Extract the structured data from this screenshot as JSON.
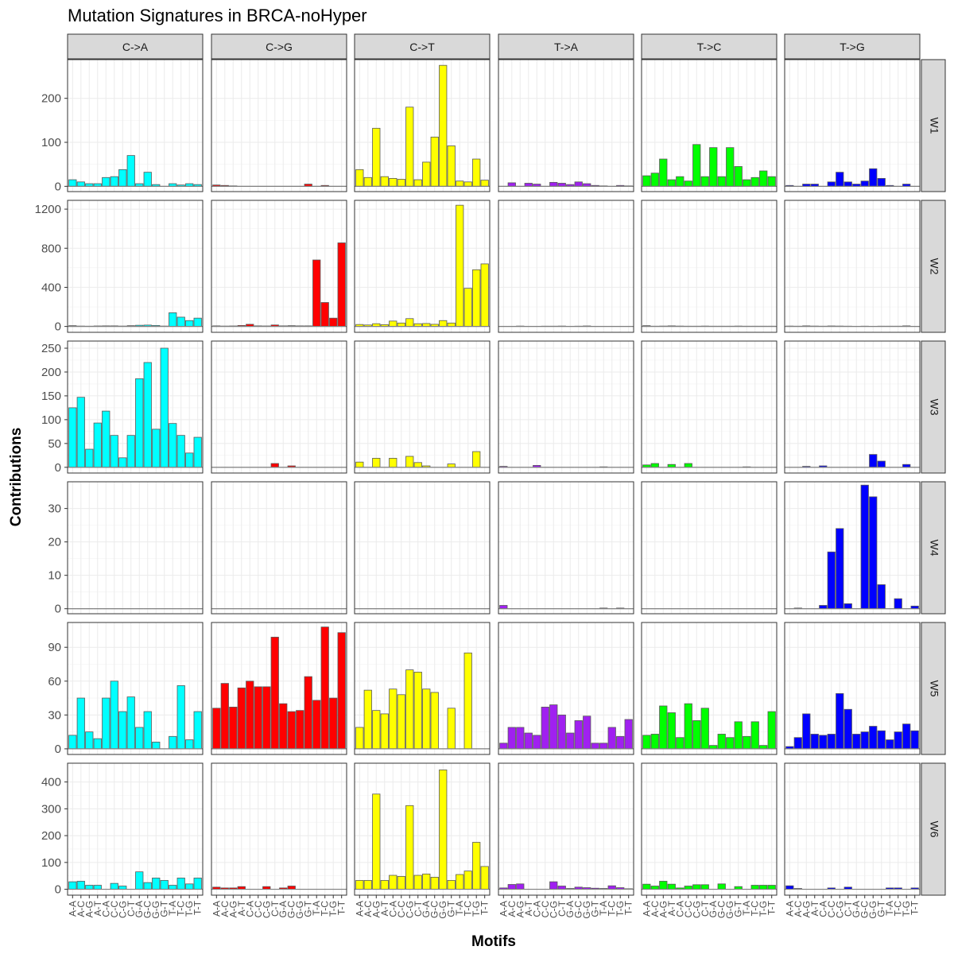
{
  "chart_data": {
    "type": "bar",
    "title": "Mutation Signatures in BRCA-noHyper",
    "xlabel": "Motifs",
    "ylabel": "Contributions",
    "columns": [
      "C->A",
      "C->G",
      "C->T",
      "T->A",
      "T->C",
      "T->G"
    ],
    "rows": [
      "W1",
      "W2",
      "W3",
      "W4",
      "W5",
      "W6"
    ],
    "motifs": [
      "A-A",
      "A-C",
      "A-G",
      "A-T",
      "C-A",
      "C-C",
      "C-G",
      "C-T",
      "G-A",
      "G-C",
      "G-G",
      "G-T",
      "T-A",
      "T-C",
      "T-G",
      "T-T"
    ],
    "colors": {
      "C->A": "#00FFFF",
      "C->G": "#FF0000",
      "C->T": "#FFFF00",
      "T->A": "#A020F0",
      "T->C": "#00FF00",
      "T->G": "#0000FF"
    },
    "facets": {
      "W1": {
        "ylim": [
          -12,
          288
        ],
        "yticks": [
          0,
          100,
          200
        ],
        "values": {
          "C->A": [
            15,
            10,
            6,
            6,
            20,
            22,
            38,
            70,
            6,
            32,
            4,
            0,
            6,
            3,
            6,
            4
          ],
          "C->G": [
            3,
            2,
            1,
            0,
            0,
            0,
            0,
            0,
            0,
            0,
            0,
            5,
            0,
            2,
            0,
            0
          ],
          "C->T": [
            38,
            20,
            132,
            22,
            18,
            16,
            180,
            15,
            55,
            112,
            275,
            92,
            12,
            10,
            62,
            14
          ],
          "T->A": [
            0,
            8,
            0,
            7,
            5,
            0,
            9,
            7,
            4,
            10,
            6,
            2,
            1,
            0,
            2,
            1
          ],
          "T->C": [
            24,
            30,
            62,
            15,
            22,
            12,
            95,
            22,
            88,
            22,
            88,
            45,
            15,
            20,
            35,
            22
          ],
          "T->G": [
            2,
            0,
            5,
            5,
            0,
            10,
            32,
            10,
            5,
            12,
            40,
            18,
            2,
            0,
            5,
            0
          ]
        }
      },
      "W2": {
        "ylim": [
          -60,
          1290
        ],
        "yticks": [
          0,
          400,
          800,
          1200
        ],
        "values": {
          "C->A": [
            8,
            4,
            3,
            5,
            6,
            6,
            4,
            8,
            12,
            14,
            10,
            4,
            140,
            95,
            60,
            85
          ],
          "C->G": [
            6,
            4,
            5,
            10,
            22,
            6,
            5,
            15,
            6,
            8,
            6,
            6,
            680,
            245,
            85,
            855
          ],
          "C->T": [
            20,
            15,
            28,
            18,
            55,
            35,
            80,
            28,
            30,
            22,
            60,
            35,
            1240,
            390,
            580,
            640
          ],
          "T->A": [
            2,
            2,
            4,
            2,
            2,
            3,
            3,
            4,
            2,
            3,
            5,
            2,
            2,
            2,
            2,
            2
          ],
          "T->C": [
            8,
            3,
            4,
            6,
            4,
            3,
            3,
            4,
            3,
            3,
            3,
            4,
            3,
            3,
            3,
            3
          ],
          "T->G": [
            4,
            3,
            6,
            4,
            3,
            5,
            4,
            3,
            2,
            3,
            2,
            3,
            3,
            3,
            6,
            2
          ]
        }
      },
      "W3": {
        "ylim": [
          -12,
          265
        ],
        "yticks": [
          0,
          50,
          100,
          150,
          200,
          250
        ],
        "values": {
          "C->A": [
            125,
            147,
            38,
            93,
            118,
            67,
            20,
            67,
            186,
            220,
            80,
            250,
            92,
            67,
            30,
            63
          ],
          "C->G": [
            0,
            0,
            0,
            0,
            0,
            0,
            0,
            8,
            0,
            3,
            0,
            0,
            0,
            0,
            0,
            0
          ],
          "C->T": [
            11,
            0,
            19,
            0,
            19,
            0,
            23,
            10,
            3,
            0,
            0,
            7,
            0,
            0,
            33,
            0
          ],
          "T->A": [
            2,
            0,
            0,
            0,
            4,
            0,
            0,
            0,
            0,
            0,
            0,
            0,
            1,
            0,
            0,
            0
          ],
          "T->C": [
            5,
            8,
            0,
            6,
            0,
            8,
            0,
            0,
            0,
            0,
            0,
            0,
            1,
            0,
            0,
            0
          ],
          "T->G": [
            0,
            0,
            2,
            0,
            3,
            0,
            0,
            0,
            0,
            0,
            27,
            13,
            0,
            0,
            6,
            0
          ]
        }
      },
      "W4": {
        "ylim": [
          -1.5,
          38
        ],
        "yticks": [
          0,
          10,
          20,
          30
        ],
        "values": {
          "C->A": [
            0,
            0,
            0,
            0,
            0,
            0,
            0,
            0,
            0,
            0,
            0,
            0,
            0,
            0,
            0,
            0
          ],
          "C->G": [
            0,
            0,
            0,
            0,
            0,
            0,
            0,
            0,
            0,
            0,
            0,
            0,
            0,
            0,
            0,
            0
          ],
          "C->T": [
            0,
            0,
            0,
            0,
            0,
            0,
            0,
            0,
            0,
            0,
            0,
            0,
            0,
            0,
            0,
            0
          ],
          "T->A": [
            1,
            0,
            0,
            0,
            0,
            0,
            0,
            0,
            0,
            0,
            0,
            0,
            0.2,
            0,
            0.2,
            0
          ],
          "T->C": [
            0,
            0,
            0,
            0,
            0,
            0,
            0,
            0,
            0,
            0,
            0,
            0,
            0,
            0,
            0,
            0
          ],
          "T->G": [
            0,
            0.2,
            0,
            0,
            1,
            17,
            24,
            1.5,
            0,
            37,
            33.5,
            7.2,
            0,
            3,
            0,
            0.8
          ]
        }
      },
      "W5": {
        "ylim": [
          -5,
          112
        ],
        "yticks": [
          0,
          30,
          60,
          90
        ],
        "values": {
          "C->A": [
            12,
            45,
            15,
            9,
            45,
            60,
            33,
            46,
            19,
            33,
            6,
            0,
            11,
            56,
            8,
            33
          ],
          "C->G": [
            36,
            58,
            37,
            54,
            60,
            55,
            55,
            99,
            40,
            33,
            34,
            64,
            43,
            108,
            45,
            103
          ],
          "C->T": [
            19,
            52,
            34,
            31,
            53,
            48,
            70,
            68,
            53,
            50,
            0,
            36,
            0,
            85,
            0,
            0
          ],
          "T->A": [
            5,
            19,
            19,
            14,
            12,
            37,
            39,
            30,
            14,
            25,
            29,
            5,
            5,
            19,
            11,
            26
          ],
          "T->C": [
            12,
            13,
            38,
            32,
            10,
            40,
            25,
            36,
            3,
            13,
            10,
            24,
            11,
            24,
            3,
            33
          ],
          "T->G": [
            2,
            10,
            31,
            13,
            12,
            13,
            49,
            35,
            13,
            15,
            20,
            16,
            8,
            15,
            22,
            16
          ]
        }
      },
      "W6": {
        "ylim": [
          -22,
          470
        ],
        "yticks": [
          0,
          100,
          200,
          300,
          400
        ],
        "values": {
          "C->A": [
            28,
            30,
            15,
            15,
            0,
            22,
            12,
            0,
            65,
            25,
            42,
            33,
            15,
            42,
            20,
            42
          ],
          "C->G": [
            8,
            5,
            5,
            10,
            0,
            0,
            10,
            0,
            5,
            12,
            0,
            0,
            0,
            0,
            0,
            0
          ],
          "C->T": [
            33,
            33,
            355,
            33,
            52,
            48,
            312,
            52,
            57,
            45,
            445,
            33,
            55,
            68,
            175,
            85
          ],
          "T->A": [
            5,
            18,
            20,
            0,
            0,
            0,
            28,
            12,
            3,
            8,
            6,
            4,
            3,
            13,
            6,
            2
          ],
          "T->C": [
            19,
            12,
            30,
            19,
            5,
            12,
            17,
            17,
            0,
            20,
            0,
            10,
            0,
            15,
            15,
            15
          ],
          "T->G": [
            13,
            3,
            0,
            0,
            0,
            5,
            0,
            8,
            0,
            0,
            0,
            0,
            5,
            5,
            0,
            5
          ]
        }
      }
    },
    "grid": true,
    "legend": "none"
  }
}
